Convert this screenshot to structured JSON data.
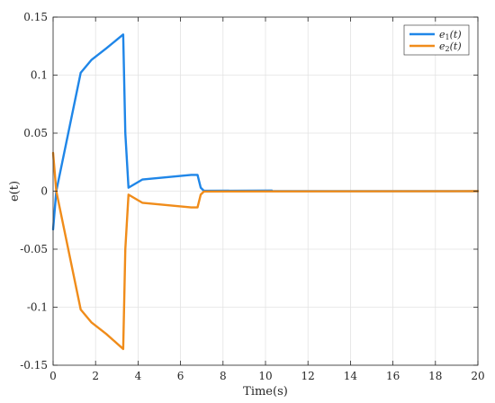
{
  "chart_data": {
    "type": "line",
    "title": "",
    "xlabel": "Time(s)",
    "ylabel": "e(t)",
    "xlim": [
      0,
      20
    ],
    "ylim": [
      -0.15,
      0.15
    ],
    "xticks": [
      0,
      2,
      4,
      6,
      8,
      10,
      12,
      14,
      16,
      18,
      20
    ],
    "yticks": [
      0.15,
      0.1,
      0.05,
      0,
      -0.05,
      -0.1,
      -0.15
    ],
    "xtick_labels": [
      "0",
      "2",
      "4",
      "6",
      "8",
      "10",
      "12",
      "14",
      "16",
      "18",
      "20"
    ],
    "ytick_labels": [
      "0.15",
      "0.1",
      "0.05",
      "0",
      "-0.05",
      "-0.1",
      "-0.15"
    ],
    "grid": true,
    "legend_position": "top-right",
    "series": [
      {
        "name": "e1(t)",
        "legend_base": "e",
        "legend_sub": "1",
        "legend_arg": "(t)",
        "color": "#1f86e8",
        "x": [
          0,
          0.15,
          1.3,
          1.8,
          2.5,
          3.3,
          3.4,
          3.55,
          4.2,
          6.5,
          6.8,
          6.95,
          7.1,
          10.3,
          10.3,
          20
        ],
        "y": [
          -0.033,
          0.0,
          0.102,
          0.113,
          0.123,
          0.135,
          0.05,
          0.003,
          0.01,
          0.014,
          0.014,
          0.003,
          0.0003,
          0.0005,
          0,
          0
        ]
      },
      {
        "name": "e2(t)",
        "legend_base": "e",
        "legend_sub": "2",
        "legend_arg": "(t)",
        "color": "#f08c1a",
        "x": [
          0,
          0.15,
          1.3,
          1.8,
          2.5,
          3.3,
          3.4,
          3.55,
          4.2,
          6.5,
          6.8,
          6.95,
          7.1,
          20
        ],
        "y": [
          0.033,
          0.0,
          -0.102,
          -0.113,
          -0.123,
          -0.136,
          -0.05,
          -0.003,
          -0.01,
          -0.014,
          -0.014,
          -0.003,
          -0.0003,
          0
        ]
      }
    ]
  }
}
